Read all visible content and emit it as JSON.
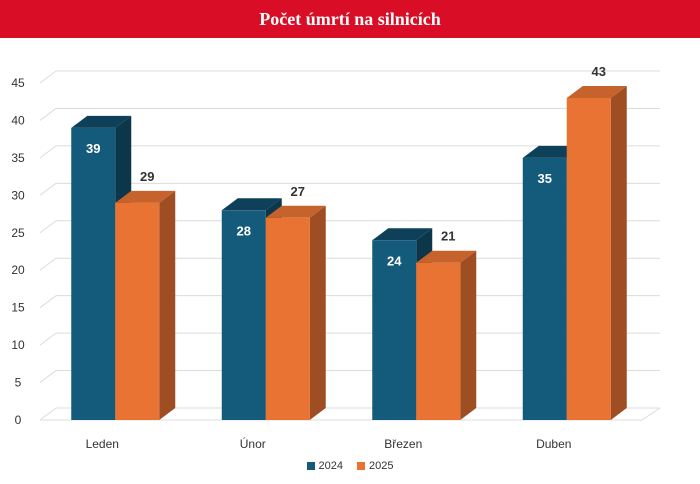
{
  "header": {
    "title": "Počet úmrtí na silnicích"
  },
  "chart_data": {
    "type": "bar",
    "title": "Počet úmrtí na silnicích",
    "categories": [
      "Leden",
      "Únor",
      "Březen",
      "Duben"
    ],
    "series": [
      {
        "name": "2024",
        "values": [
          39,
          28,
          24,
          35
        ],
        "color": "#145a7b"
      },
      {
        "name": "2025",
        "values": [
          29,
          27,
          21,
          43
        ],
        "color": "#e97332"
      }
    ],
    "ylim": [
      0,
      45
    ],
    "yticks": [
      0,
      5,
      10,
      15,
      20,
      25,
      30,
      35,
      40,
      45
    ],
    "grid": true,
    "legend": "bottom",
    "xlabel": "",
    "ylabel": ""
  }
}
